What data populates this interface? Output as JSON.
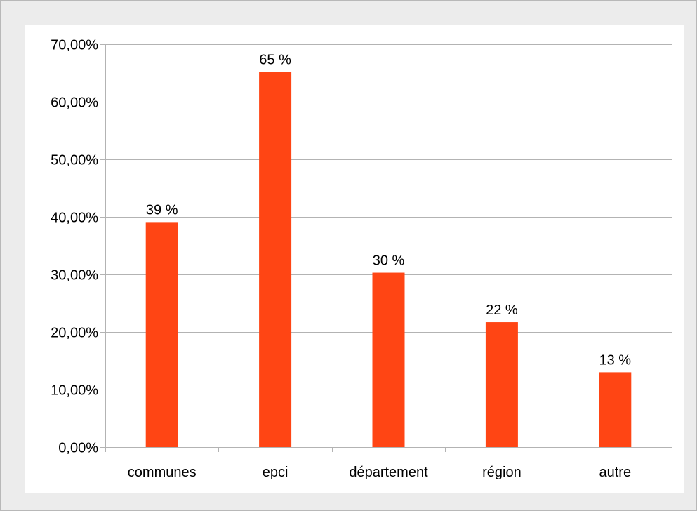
{
  "chart_data": {
    "type": "bar",
    "title": "",
    "xlabel": "",
    "ylabel": "",
    "categories": [
      "communes",
      "epci",
      "département",
      "région",
      "autre"
    ],
    "values": [
      39.1,
      65.2,
      30.3,
      21.7,
      13.0
    ],
    "data_labels": [
      "39 %",
      "65 %",
      "30 %",
      "22 %",
      "13 %"
    ],
    "ylim": [
      0,
      70
    ],
    "y_ticks": [
      0,
      10,
      20,
      30,
      40,
      50,
      60,
      70
    ],
    "y_tick_labels": [
      "0,00%",
      "10,00%",
      "20,00%",
      "30,00%",
      "40,00%",
      "50,00%",
      "60,00%",
      "70,00%"
    ],
    "grid": true,
    "legend": "none",
    "bar_color": "#ff4514",
    "grid_color": "#b3b3b3"
  }
}
